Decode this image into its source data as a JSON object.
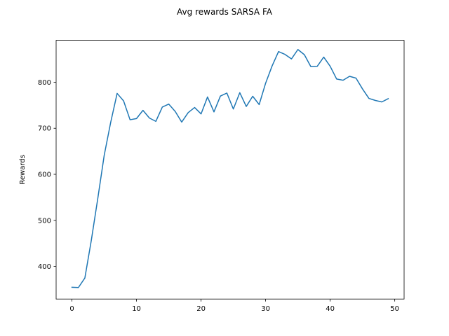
{
  "chart_data": {
    "type": "line",
    "title": "Avg rewards SARSA FA",
    "xlabel": "",
    "ylabel": "Rewards",
    "xlim": [
      -2.45,
      51.45
    ],
    "ylim": [
      329.1,
      891.0
    ],
    "xticks": [
      0,
      10,
      20,
      30,
      40,
      50
    ],
    "yticks": [
      400,
      500,
      600,
      700,
      800
    ],
    "grid": false,
    "series": [
      {
        "color": "#1f77b4",
        "x": [
          0,
          1,
          2,
          3,
          4,
          5,
          6,
          7,
          8,
          9,
          10,
          11,
          12,
          13,
          14,
          15,
          16,
          17,
          18,
          19,
          20,
          21,
          22,
          23,
          24,
          25,
          26,
          27,
          28,
          29,
          30,
          31,
          32,
          33,
          34,
          35,
          36,
          37,
          38,
          39,
          40,
          41,
          42,
          43,
          44,
          45,
          46,
          47,
          48,
          49
        ],
        "values": [
          354.6,
          354.1,
          374.7,
          456.6,
          547.2,
          641.4,
          712.7,
          775.7,
          759.5,
          718.5,
          721.1,
          738.9,
          722.2,
          715.0,
          746.1,
          752.5,
          736.5,
          713.4,
          733.9,
          745.1,
          731.2,
          767.9,
          735.6,
          770.0,
          776.4,
          741.8,
          777.3,
          747.4,
          769.5,
          751.5,
          797.9,
          835.2,
          866.6,
          860.4,
          850.6,
          871.0,
          859.8,
          833.9,
          834.6,
          854.5,
          834.6,
          806.9,
          804.3,
          812.9,
          808.9,
          785.6,
          764.9,
          760.4,
          757.2,
          764.3
        ]
      }
    ]
  }
}
